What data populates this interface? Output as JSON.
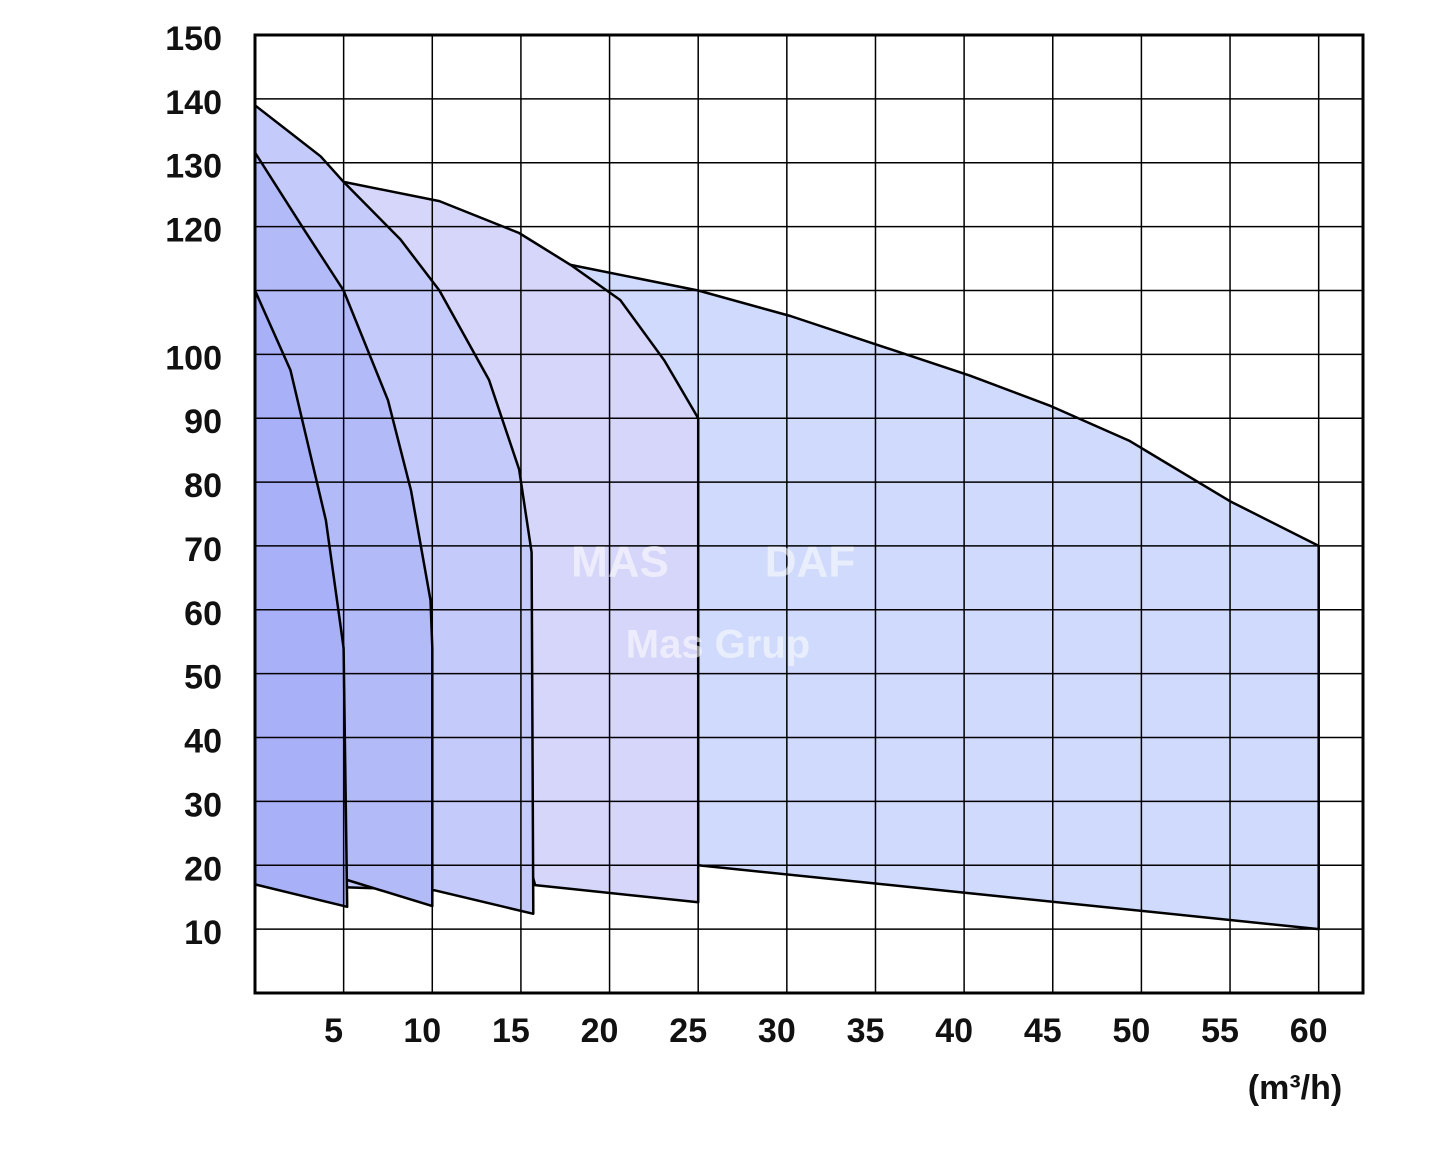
{
  "chart_data": {
    "type": "area",
    "x_label": "(m³/h)",
    "watermark": [
      "MAS",
      "DAF",
      "Mas Grup"
    ],
    "xlim": [
      0,
      62.5
    ],
    "ylim": [
      0,
      150
    ],
    "xticks": [
      5,
      10,
      15,
      20,
      25,
      30,
      35,
      40,
      45,
      50,
      55,
      60
    ],
    "yticks": [
      10,
      20,
      30,
      40,
      50,
      60,
      70,
      80,
      90,
      100,
      {
        "value": 110,
        "label": null
      },
      120,
      130,
      140,
      150
    ],
    "grid": true,
    "series": [
      {
        "color": "#d0dafc",
        "x": [
          17.8,
          25,
          30.2,
          35.2,
          40.3,
          44.8,
          49.3,
          55,
          60,
          60,
          25
        ],
        "values": [
          114,
          110,
          106,
          101.4,
          96.7,
          92,
          86.5,
          77,
          70,
          10,
          20
        ]
      },
      {
        "color": "#d6d6fa",
        "x": [
          5,
          10.4,
          14.9,
          17.8,
          20.6,
          23.1,
          25,
          25,
          15.8
        ],
        "values": [
          127,
          124,
          119,
          114,
          108.5,
          99,
          90,
          14.2,
          16.9
        ]
      },
      {
        "color": "#c4caf9",
        "x": [
          0,
          3.7,
          5,
          8.2,
          10.4,
          13.2,
          14.9,
          15.6,
          15.7,
          10.1,
          0
        ],
        "values": [
          139,
          131,
          127,
          118,
          110,
          96,
          82,
          69,
          12.4,
          16.1,
          17
        ]
      },
      {
        "color": "#b2baf8",
        "x": [
          0,
          2.8,
          5,
          7.5,
          8.8,
          9.9,
          10,
          10,
          5.2,
          0
        ],
        "values": [
          131.6,
          119.4,
          110,
          92.8,
          78.7,
          61.5,
          54,
          13.6,
          17.7,
          17
        ]
      },
      {
        "color": "#a8b1f7",
        "x": [
          0,
          2,
          4,
          4.8,
          5,
          5.2,
          0
        ],
        "values": [
          110,
          97.5,
          74,
          58,
          54,
          13.5,
          17
        ]
      }
    ]
  }
}
